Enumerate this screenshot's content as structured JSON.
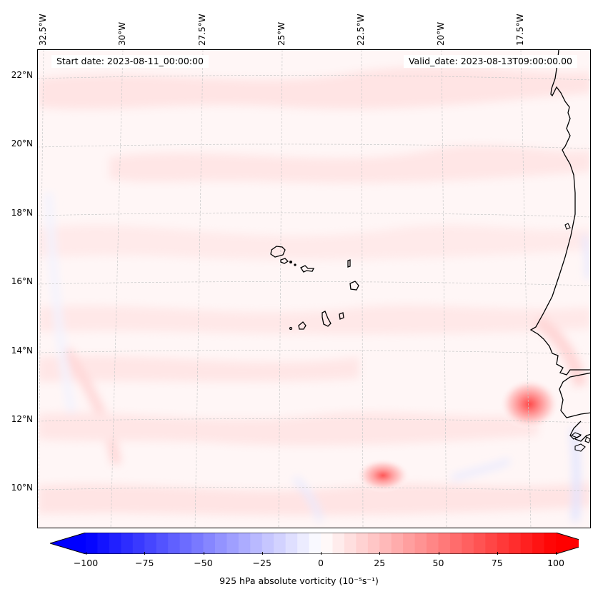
{
  "chart_data": {
    "type": "heatmap",
    "title": "",
    "variable_label": "925 hPa absolute vorticity",
    "units_label": "(10⁻⁵s⁻¹)",
    "colormap": "bwr",
    "colorbar": {
      "range": [
        -100,
        100
      ],
      "extend": "both",
      "ticks": [
        -100,
        -75,
        -50,
        -25,
        0,
        25,
        50,
        75,
        100
      ],
      "tick_labels": [
        "−100",
        "−75",
        "−50",
        "−25",
        "0",
        "25",
        "50",
        "75",
        "100"
      ],
      "levels": 40,
      "placement": "bottom"
    },
    "longitude_ticks": [
      "32.5°W",
      "30°W",
      "27.5°W",
      "25°W",
      "22.5°W",
      "20°W",
      "17.5°W"
    ],
    "latitude_ticks": [
      "22°N",
      "20°N",
      "18°N",
      "16°N",
      "14°N",
      "12°N",
      "10°N"
    ],
    "extent": {
      "lon": [
        -32.8,
        -15.0
      ],
      "lat": [
        8.9,
        22.8
      ]
    },
    "grid": true,
    "features": [
      {
        "name": "vorticity maximum near Guinea-Bissau coast",
        "lon": -17.3,
        "lat": 12.5,
        "value_approx": 60
      },
      {
        "name": "vorticity maximum south of Cape Verde",
        "lon": -22.0,
        "lat": 10.4,
        "value_approx": 55
      }
    ],
    "background_value_approx": 5
  },
  "annotations": {
    "start_date": "Start date: 2023-08-11_00:00:00",
    "valid_date": "Valid_date: 2023-08-13T09:00:00.00"
  },
  "colors": {
    "min": "#0000ff",
    "mid": "#ffffff",
    "max": "#ff0000",
    "coastline": "#000000",
    "gridline": "#c8c8c8"
  }
}
